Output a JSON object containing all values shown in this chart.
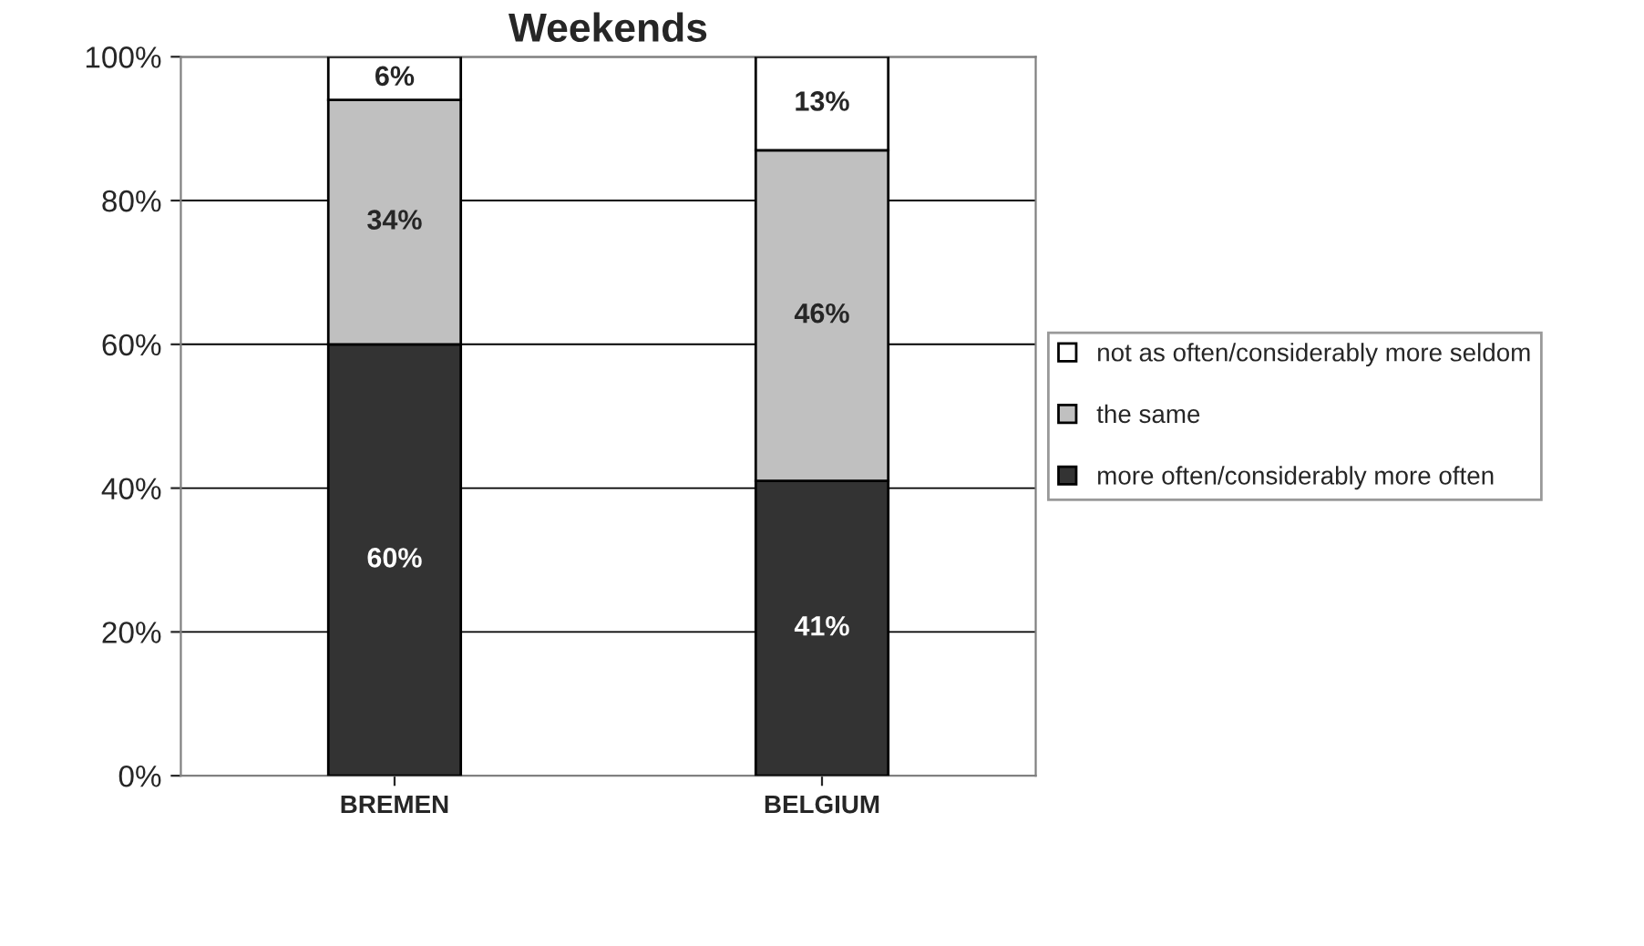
{
  "chart_data": {
    "type": "bar",
    "title": "Weekends",
    "stacked": true,
    "categories": [
      "BREMEN",
      "BELGIUM"
    ],
    "series": [
      {
        "name": "more often/considerably more often",
        "color": "#333333",
        "values": [
          60,
          41
        ],
        "value_labels": [
          "60%",
          "41%"
        ]
      },
      {
        "name": "the same",
        "color": "#c0c0c0",
        "values": [
          34,
          46
        ],
        "value_labels": [
          "34%",
          "46%"
        ]
      },
      {
        "name": "not as often/considerably more seldom",
        "color": "#ffffff",
        "values": [
          6,
          13
        ],
        "value_labels": [
          "6%",
          "13%"
        ]
      }
    ],
    "ylim": [
      0,
      100
    ],
    "yticks": [
      {
        "value": 0,
        "label": "0%"
      },
      {
        "value": 20,
        "label": "20%"
      },
      {
        "value": 40,
        "label": "40%"
      },
      {
        "value": 60,
        "label": "60%"
      },
      {
        "value": 80,
        "label": "80%"
      },
      {
        "value": 100,
        "label": "100%"
      }
    ],
    "grid": "y",
    "legend": "right"
  }
}
